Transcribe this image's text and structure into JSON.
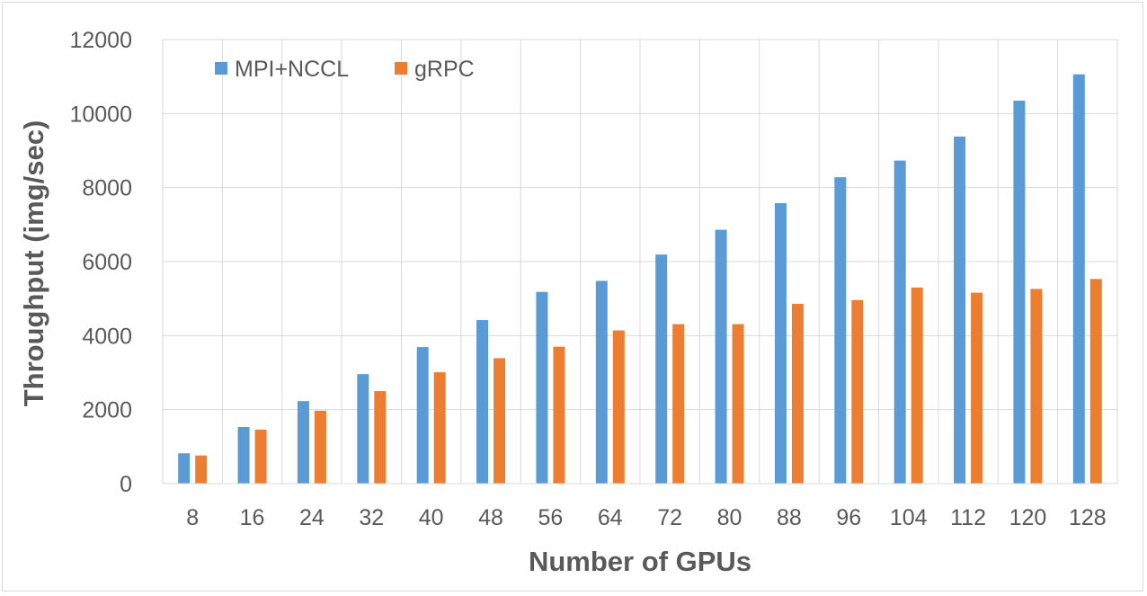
{
  "chart_data": {
    "type": "bar",
    "title": "",
    "xlabel": "Number of GPUs",
    "ylabel": "Throughput (img/sec)",
    "categories": [
      "8",
      "16",
      "24",
      "32",
      "40",
      "48",
      "56",
      "64",
      "72",
      "80",
      "88",
      "96",
      "104",
      "112",
      "120",
      "128"
    ],
    "series": [
      {
        "name": "MPI+NCCL",
        "color": "#5b9bd5",
        "values": [
          820,
          1530,
          2230,
          2960,
          3690,
          4420,
          5180,
          5480,
          6190,
          6860,
          7580,
          8280,
          8730,
          9380,
          10350,
          11060
        ]
      },
      {
        "name": "gRPC",
        "color": "#ed7d31",
        "values": [
          760,
          1460,
          1970,
          2500,
          3010,
          3390,
          3700,
          4140,
          4310,
          4310,
          4860,
          4960,
          5300,
          5160,
          5260,
          5530
        ]
      }
    ],
    "ylim": [
      0,
      12000
    ],
    "yticks": [
      0,
      2000,
      4000,
      6000,
      8000,
      10000,
      12000
    ],
    "grid": true,
    "legend_position": "top-left"
  }
}
